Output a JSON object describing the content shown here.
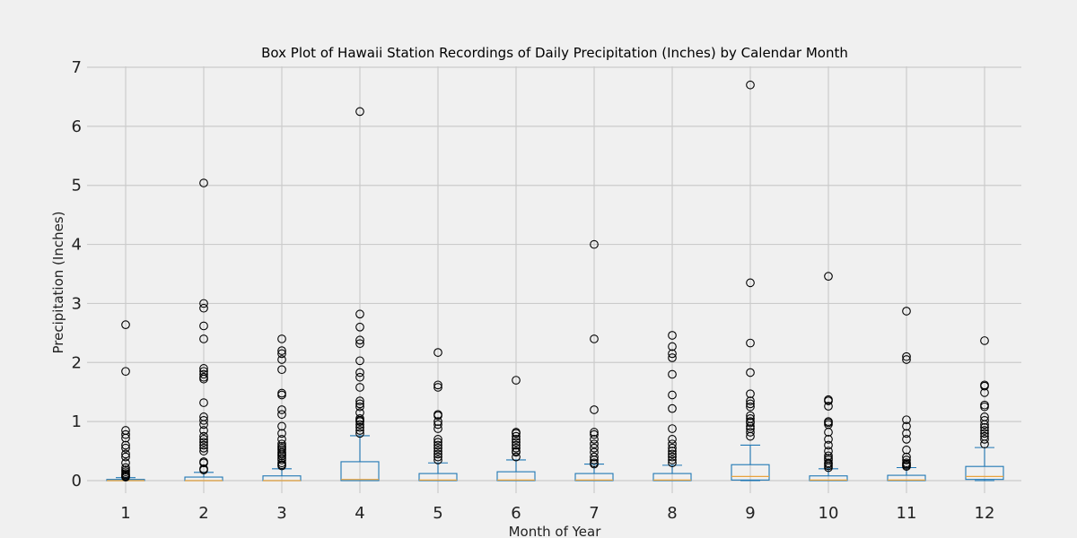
{
  "chart_data": {
    "type": "box",
    "title": "Box Plot of Hawaii Station Recordings of Daily Precipitation (Inches) by Calendar Month",
    "xlabel": "Month of Year",
    "ylabel": "Precipitation (Inches)",
    "ylim": [
      -0.2,
      7
    ],
    "yticks": [
      0,
      1,
      2,
      3,
      4,
      5,
      6,
      7
    ],
    "grid": true,
    "colors": {
      "box": "#1f77b4",
      "median": "#e8a33d",
      "flier": "#000000",
      "grid": "#cbcbcb",
      "background": "#f0f0f0"
    },
    "categories": [
      "1",
      "2",
      "3",
      "4",
      "5",
      "6",
      "7",
      "8",
      "9",
      "10",
      "11",
      "12"
    ],
    "boxes": [
      {
        "q1": 0.0,
        "median": 0.0,
        "q3": 0.02,
        "whislo": 0.0,
        "whishi": 0.05,
        "fliers": [
          2.64,
          1.85,
          0.85,
          0.78,
          0.72,
          0.6,
          0.55,
          0.45,
          0.4,
          0.3,
          0.22,
          0.18,
          0.15,
          0.12,
          0.1,
          0.08,
          0.07,
          0.06
        ]
      },
      {
        "q1": 0.0,
        "median": 0.0,
        "q3": 0.06,
        "whislo": 0.0,
        "whishi": 0.14,
        "fliers": [
          5.04,
          3.0,
          2.92,
          2.62,
          2.4,
          1.9,
          1.85,
          1.8,
          1.75,
          1.72,
          1.32,
          1.08,
          1.02,
          0.95,
          0.85,
          0.75,
          0.7,
          0.65,
          0.6,
          0.55,
          0.5,
          0.32,
          0.3,
          0.2,
          0.18
        ]
      },
      {
        "q1": 0.0,
        "median": 0.0,
        "q3": 0.08,
        "whislo": 0.0,
        "whishi": 0.2,
        "fliers": [
          2.4,
          2.2,
          2.15,
          2.05,
          1.88,
          1.48,
          1.45,
          1.2,
          1.12,
          0.92,
          0.8,
          0.7,
          0.62,
          0.58,
          0.55,
          0.52,
          0.48,
          0.45,
          0.42,
          0.38,
          0.35,
          0.3,
          0.27,
          0.25
        ]
      },
      {
        "q1": 0.0,
        "median": 0.02,
        "q3": 0.32,
        "whislo": 0.0,
        "whishi": 0.76,
        "fliers": [
          6.25,
          2.82,
          2.6,
          2.38,
          2.32,
          2.03,
          1.83,
          1.75,
          1.58,
          1.35,
          1.3,
          1.25,
          1.15,
          1.05,
          1.02,
          1.0,
          0.95,
          0.9,
          0.85,
          0.8
        ]
      },
      {
        "q1": 0.0,
        "median": 0.01,
        "q3": 0.12,
        "whislo": 0.0,
        "whishi": 0.3,
        "fliers": [
          2.17,
          1.62,
          1.58,
          1.12,
          1.1,
          1.0,
          0.95,
          0.88,
          0.7,
          0.65,
          0.6,
          0.55,
          0.5,
          0.45,
          0.4,
          0.35
        ]
      },
      {
        "q1": 0.0,
        "median": 0.01,
        "q3": 0.15,
        "whislo": 0.0,
        "whishi": 0.35,
        "fliers": [
          1.7,
          0.82,
          0.8,
          0.75,
          0.7,
          0.65,
          0.6,
          0.55,
          0.5,
          0.48,
          0.4
        ]
      },
      {
        "q1": 0.0,
        "median": 0.01,
        "q3": 0.12,
        "whislo": 0.0,
        "whishi": 0.28,
        "fliers": [
          4.0,
          2.4,
          1.2,
          0.82,
          0.78,
          0.7,
          0.62,
          0.55,
          0.48,
          0.4,
          0.35,
          0.3,
          0.28
        ]
      },
      {
        "q1": 0.0,
        "median": 0.01,
        "q3": 0.12,
        "whislo": 0.0,
        "whishi": 0.26,
        "fliers": [
          2.46,
          2.27,
          2.15,
          2.08,
          1.8,
          1.45,
          1.22,
          0.88,
          0.7,
          0.62,
          0.55,
          0.5,
          0.45,
          0.4,
          0.35,
          0.3
        ]
      },
      {
        "q1": 0.01,
        "median": 0.07,
        "q3": 0.27,
        "whislo": 0.0,
        "whishi": 0.6,
        "fliers": [
          6.7,
          3.35,
          2.33,
          1.83,
          1.47,
          1.35,
          1.3,
          1.25,
          1.1,
          1.05,
          1.0,
          0.98,
          0.92,
          0.88,
          0.82,
          0.75
        ]
      },
      {
        "q1": 0.0,
        "median": 0.01,
        "q3": 0.08,
        "whislo": 0.0,
        "whishi": 0.2,
        "fliers": [
          3.46,
          1.37,
          1.35,
          1.26,
          1.0,
          0.98,
          0.95,
          0.82,
          0.7,
          0.6,
          0.5,
          0.42,
          0.38,
          0.35,
          0.3,
          0.28,
          0.25,
          0.22
        ]
      },
      {
        "q1": 0.0,
        "median": 0.01,
        "q3": 0.09,
        "whislo": 0.0,
        "whishi": 0.22,
        "fliers": [
          2.87,
          2.1,
          2.05,
          1.03,
          0.92,
          0.8,
          0.7,
          0.52,
          0.4,
          0.35,
          0.3,
          0.28,
          0.26,
          0.24
        ]
      },
      {
        "q1": 0.02,
        "median": 0.07,
        "q3": 0.24,
        "whislo": 0.0,
        "whishi": 0.56,
        "fliers": [
          2.37,
          1.62,
          1.6,
          1.49,
          1.28,
          1.25,
          1.08,
          1.02,
          0.95,
          0.9,
          0.85,
          0.8,
          0.75,
          0.7,
          0.62
        ]
      }
    ]
  }
}
